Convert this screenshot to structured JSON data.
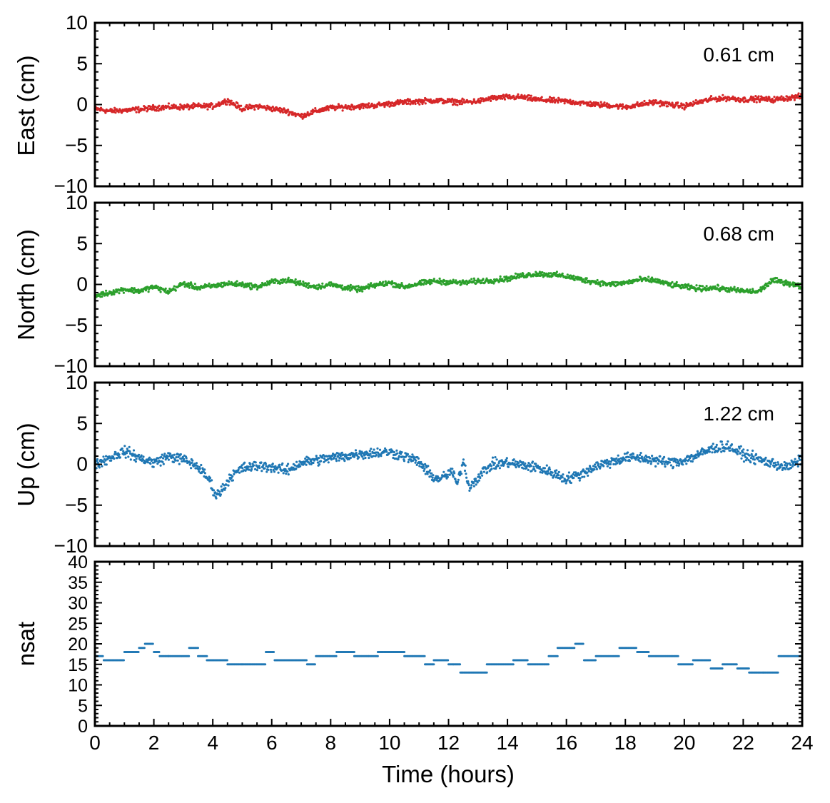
{
  "chart_data": [
    {
      "type": "scatter",
      "title": "",
      "ylabel": "East (cm)",
      "xlabel": "",
      "xlim": [
        0,
        24
      ],
      "ylim": [
        -10,
        10
      ],
      "yticks": [
        -10,
        -5,
        0,
        5,
        10
      ],
      "ytick_labels": [
        "−10",
        "−5",
        "0",
        "5",
        "10"
      ],
      "annotation": "0.61 cm",
      "color": "#d62728",
      "series": [
        {
          "x": [
            0,
            0.5,
            1,
            1.5,
            2,
            2.5,
            3,
            3.5,
            4,
            4.5,
            5,
            5.5,
            6,
            6.5,
            7,
            7.5,
            8,
            8.5,
            9,
            9.5,
            10,
            10.5,
            11,
            11.5,
            12,
            12.5,
            13,
            13.5,
            14,
            14.5,
            15,
            15.5,
            16,
            16.5,
            17,
            17.5,
            18,
            18.5,
            19,
            19.5,
            20,
            20.5,
            21,
            21.5,
            22,
            22.5,
            23,
            23.5,
            24
          ],
          "y": [
            -0.5,
            -0.8,
            -0.7,
            -0.6,
            -0.4,
            -0.3,
            -0.3,
            -0.2,
            -0.2,
            0.5,
            -0.5,
            -0.2,
            -0.5,
            -0.8,
            -1.4,
            -0.8,
            -0.4,
            -0.3,
            -0.2,
            -0.1,
            0.1,
            0.3,
            0.4,
            0.5,
            0.4,
            0.3,
            0.4,
            0.8,
            0.9,
            0.9,
            0.6,
            0.5,
            0.4,
            0.2,
            0.0,
            -0.1,
            -0.3,
            0.0,
            0.3,
            0.0,
            -0.2,
            0.3,
            0.7,
            0.8,
            0.6,
            0.7,
            0.6,
            0.8,
            1.0
          ]
        }
      ]
    },
    {
      "type": "scatter",
      "title": "",
      "ylabel": "North (cm)",
      "xlabel": "",
      "xlim": [
        0,
        24
      ],
      "ylim": [
        -10,
        10
      ],
      "yticks": [
        -10,
        -5,
        0,
        5,
        10
      ],
      "ytick_labels": [
        "−10",
        "−5",
        "0",
        "5",
        "10"
      ],
      "annotation": "0.68 cm",
      "color": "#2ca02c",
      "series": [
        {
          "x": [
            0,
            0.5,
            1,
            1.5,
            2,
            2.5,
            3,
            3.5,
            4,
            4.5,
            5,
            5.5,
            6,
            6.5,
            7,
            7.5,
            8,
            8.5,
            9,
            9.5,
            10,
            10.5,
            11,
            11.5,
            12,
            12.5,
            13,
            13.5,
            14,
            14.5,
            15,
            15.5,
            16,
            16.5,
            17,
            17.5,
            18,
            18.5,
            19,
            19.5,
            20,
            20.5,
            21,
            21.5,
            22,
            22.5,
            23,
            23.5,
            24
          ],
          "y": [
            -1.4,
            -1.0,
            -0.6,
            -0.8,
            -0.3,
            -0.9,
            0.1,
            -0.4,
            -0.2,
            0.1,
            0.0,
            -0.3,
            0.3,
            0.5,
            0.1,
            -0.3,
            0.0,
            -0.4,
            -0.6,
            -0.1,
            0.2,
            -0.3,
            0.1,
            0.4,
            0.3,
            0.2,
            0.4,
            0.5,
            0.7,
            1.1,
            1.3,
            1.2,
            1.0,
            0.6,
            0.3,
            0.0,
            0.2,
            0.6,
            0.5,
            0.0,
            -0.3,
            -0.5,
            -0.4,
            -0.6,
            -0.8,
            -0.9,
            0.5,
            0.2,
            -0.3
          ]
        }
      ]
    },
    {
      "type": "scatter",
      "title": "",
      "ylabel": "Up (cm)",
      "xlabel": "",
      "xlim": [
        0,
        24
      ],
      "ylim": [
        -10,
        10
      ],
      "yticks": [
        -10,
        -5,
        0,
        5,
        10
      ],
      "ytick_labels": [
        "−10",
        "−5",
        "0",
        "5",
        "10"
      ],
      "annotation": "1.22 cm",
      "color": "#1f77b4",
      "series": [
        {
          "x": [
            0,
            0.5,
            1,
            1.5,
            2,
            2.5,
            3,
            3.5,
            3.9,
            4.1,
            4.3,
            4.6,
            5,
            5.5,
            6,
            6.5,
            7,
            7.5,
            8,
            8.5,
            9,
            9.5,
            10,
            10.5,
            11,
            11.3,
            11.6,
            11.9,
            12.1,
            12.3,
            12.5,
            12.7,
            12.9,
            13.2,
            13.5,
            14,
            14.5,
            15,
            15.5,
            16,
            16.5,
            17,
            17.5,
            18,
            18.5,
            19,
            19.5,
            20,
            20.5,
            21,
            21.5,
            22,
            22.5,
            23,
            23.5,
            24
          ],
          "y": [
            0.0,
            0.8,
            1.6,
            0.8,
            0.2,
            1.0,
            0.6,
            -0.3,
            -2.0,
            -3.8,
            -3.2,
            -1.5,
            -0.5,
            -0.2,
            -0.3,
            -0.8,
            0.2,
            0.5,
            0.8,
            1.0,
            1.3,
            1.4,
            1.5,
            1.0,
            0.3,
            -1.0,
            -1.8,
            -1.5,
            -0.8,
            -2.5,
            0.5,
            -2.8,
            -2.0,
            -0.8,
            0.0,
            0.2,
            -0.1,
            -0.4,
            -1.0,
            -1.8,
            -1.2,
            -0.2,
            0.3,
            0.8,
            0.8,
            0.5,
            0.2,
            0.5,
            1.2,
            2.0,
            2.2,
            1.2,
            0.6,
            0.1,
            -0.4,
            0.6
          ]
        }
      ]
    },
    {
      "type": "scatter",
      "title": "",
      "ylabel": "nsat",
      "xlabel": "Time (hours)",
      "xlim": [
        0,
        24
      ],
      "ylim": [
        0,
        40
      ],
      "yticks": [
        0,
        5,
        10,
        15,
        20,
        25,
        30,
        35,
        40
      ],
      "ytick_labels": [
        "0",
        "5",
        "10",
        "15",
        "20",
        "25",
        "30",
        "35",
        "40"
      ],
      "xticks": [
        0,
        2,
        4,
        6,
        8,
        10,
        12,
        14,
        16,
        18,
        20,
        22,
        24
      ],
      "xtick_labels": [
        "0",
        "2",
        "4",
        "6",
        "8",
        "10",
        "12",
        "14",
        "16",
        "18",
        "20",
        "22",
        "24"
      ],
      "annotation": "",
      "color": "#1f77b4",
      "series": [
        {
          "steps": [
            [
              0,
              0.3,
              17
            ],
            [
              0.3,
              0.5,
              16
            ],
            [
              0.5,
              1.0,
              16
            ],
            [
              1.0,
              1.5,
              18
            ],
            [
              1.5,
              1.7,
              19
            ],
            [
              1.7,
              2.0,
              20
            ],
            [
              2.0,
              2.2,
              18
            ],
            [
              2.2,
              2.5,
              17
            ],
            [
              2.5,
              3.2,
              17
            ],
            [
              3.2,
              3.5,
              19
            ],
            [
              3.5,
              3.8,
              17
            ],
            [
              3.8,
              4.5,
              16
            ],
            [
              4.5,
              5.0,
              15
            ],
            [
              5.0,
              5.8,
              15
            ],
            [
              5.8,
              6.1,
              18
            ],
            [
              6.1,
              7.2,
              16
            ],
            [
              7.2,
              7.5,
              15
            ],
            [
              7.5,
              8.2,
              17
            ],
            [
              8.2,
              8.8,
              18
            ],
            [
              8.8,
              9.3,
              17
            ],
            [
              9.3,
              9.6,
              17
            ],
            [
              9.6,
              10.5,
              18
            ],
            [
              10.5,
              11.2,
              17
            ],
            [
              11.2,
              11.5,
              15
            ],
            [
              11.5,
              12.0,
              16
            ],
            [
              12.0,
              12.4,
              15
            ],
            [
              12.4,
              13.3,
              13
            ],
            [
              13.3,
              14.2,
              15
            ],
            [
              14.2,
              14.7,
              16
            ],
            [
              14.7,
              15.4,
              15
            ],
            [
              15.4,
              15.7,
              17
            ],
            [
              15.7,
              16.3,
              19
            ],
            [
              16.3,
              16.6,
              20
            ],
            [
              16.6,
              17.0,
              16
            ],
            [
              17.0,
              17.6,
              17
            ],
            [
              17.6,
              17.8,
              17
            ],
            [
              17.8,
              18.4,
              19
            ],
            [
              18.4,
              18.8,
              18
            ],
            [
              18.8,
              19.4,
              17
            ],
            [
              19.4,
              19.8,
              17
            ],
            [
              19.8,
              20.3,
              15
            ],
            [
              20.3,
              20.9,
              16
            ],
            [
              20.9,
              21.3,
              14
            ],
            [
              21.3,
              21.8,
              15
            ],
            [
              21.8,
              22.2,
              14
            ],
            [
              22.2,
              22.7,
              13
            ],
            [
              22.7,
              23.2,
              13
            ],
            [
              23.2,
              23.5,
              17
            ],
            [
              23.5,
              24.0,
              17
            ]
          ]
        }
      ]
    }
  ]
}
